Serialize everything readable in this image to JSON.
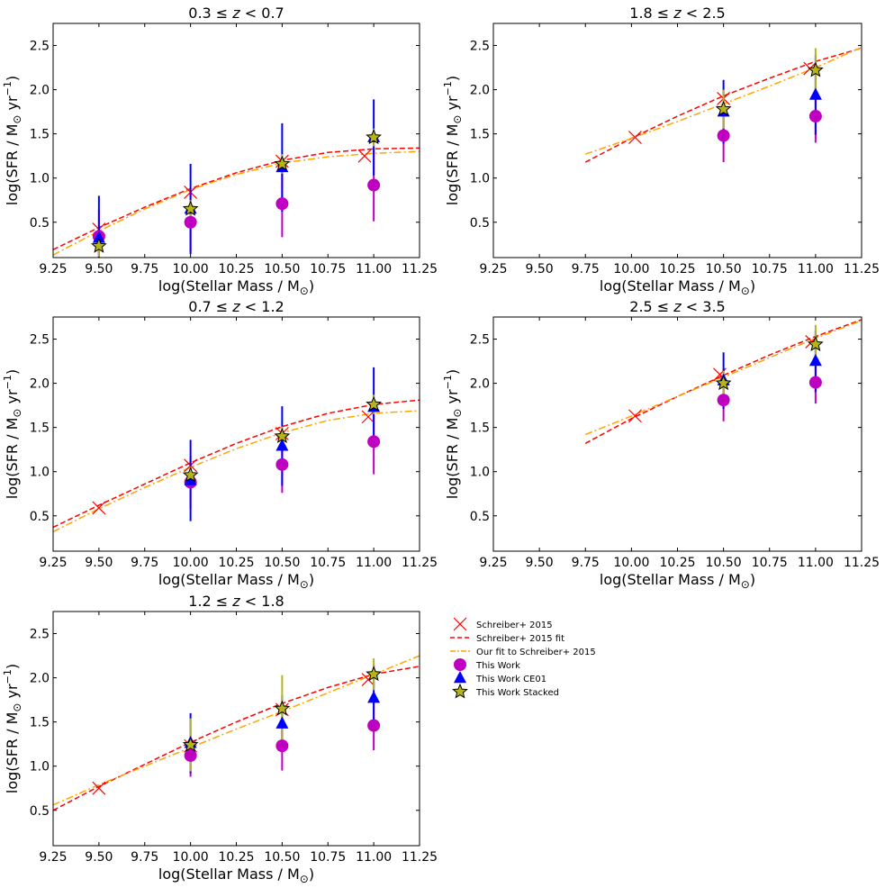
{
  "figure": {
    "legend": {
      "entries": [
        {
          "key": "schreiber_points",
          "label": "Schreiber+ 2015",
          "color": "#ff0000",
          "marker": "x"
        },
        {
          "key": "schreiber_fit",
          "label": "Schreiber+ 2015 fit",
          "color": "#ff0000",
          "linestyle": "dashed"
        },
        {
          "key": "our_fit",
          "label": "Our fit to Schreiber+ 2015",
          "color": "#ffa500",
          "linestyle": "dashdot"
        },
        {
          "key": "this_work",
          "label": "This Work",
          "color": "#c000c0",
          "marker": "circle"
        },
        {
          "key": "this_work_ce01",
          "label": "This Work CE01",
          "color": "#0000ff",
          "marker": "triangle"
        },
        {
          "key": "this_work_stacked",
          "label": "This Work Stacked",
          "color": "#b5b51a",
          "marker": "star"
        }
      ]
    }
  },
  "chart_data": [
    {
      "type": "scatter",
      "title_pre": "0.3 ≤ ",
      "title_var": "z",
      "title_post": " < 0.7",
      "xlabel": "log(Stellar Mass / M",
      "ylabel": "log(SFR / M",
      "ylabel_unit": " yr",
      "ylabel_exp": "−1",
      "xlim": [
        9.25,
        11.25
      ],
      "ylim": [
        0.1,
        2.75
      ],
      "xticks": [
        "9.25",
        "9.50",
        "9.75",
        "10.00",
        "10.25",
        "10.50",
        "10.75",
        "11.00",
        "11.25"
      ],
      "yticks": [
        "0.5",
        "1.0",
        "1.5",
        "2.0",
        "2.5"
      ],
      "schreiber_points": [
        [
          9.5,
          0.42
        ],
        [
          10.0,
          0.84
        ],
        [
          10.5,
          1.19
        ],
        [
          10.95,
          1.25
        ]
      ],
      "schreiber_fit": [
        [
          9.25,
          0.19
        ],
        [
          9.5,
          0.44
        ],
        [
          9.75,
          0.67
        ],
        [
          10.0,
          0.88
        ],
        [
          10.25,
          1.06
        ],
        [
          10.5,
          1.2
        ],
        [
          10.75,
          1.29
        ],
        [
          11.0,
          1.33
        ],
        [
          11.25,
          1.34
        ]
      ],
      "our_fit": [
        [
          9.25,
          0.13
        ],
        [
          9.5,
          0.4
        ],
        [
          9.75,
          0.65
        ],
        [
          10.0,
          0.87
        ],
        [
          10.25,
          1.04
        ],
        [
          10.5,
          1.17
        ],
        [
          10.75,
          1.24
        ],
        [
          11.0,
          1.28
        ],
        [
          11.25,
          1.3
        ]
      ],
      "this_work": [
        {
          "x": 9.5,
          "y": 0.34,
          "err": 0.3
        },
        {
          "x": 10.0,
          "y": 0.5,
          "err": 0.33
        },
        {
          "x": 10.5,
          "y": 0.71,
          "err": 0.38
        },
        {
          "x": 11.0,
          "y": 0.92,
          "err": 0.41
        }
      ],
      "this_work_ce01": [
        {
          "x": 9.5,
          "y": 0.32,
          "err": 0.48
        },
        {
          "x": 10.0,
          "y": 0.65,
          "err": 0.51
        },
        {
          "x": 10.5,
          "y": 1.12,
          "err": 0.5
        },
        {
          "x": 11.0,
          "y": 1.46,
          "err": 0.43
        }
      ],
      "this_work_stacked": [
        {
          "x": 9.5,
          "y": 0.23,
          "err": 0.12
        },
        {
          "x": 10.0,
          "y": 0.65,
          "err": 0.1
        },
        {
          "x": 10.5,
          "y": 1.16,
          "err": 0.11
        },
        {
          "x": 11.0,
          "y": 1.46,
          "err": 0.1
        }
      ]
    },
    {
      "type": "scatter",
      "title_pre": "1.8 ≤ ",
      "title_var": "z",
      "title_post": " < 2.5",
      "xlabel": "log(Stellar Mass / M",
      "ylabel": "log(SFR / M",
      "ylabel_unit": " yr",
      "ylabel_exp": "−1",
      "xlim": [
        9.25,
        11.25
      ],
      "ylim": [
        0.1,
        2.75
      ],
      "xticks": [
        "9.25",
        "9.50",
        "9.75",
        "10.00",
        "10.25",
        "10.50",
        "10.75",
        "11.00",
        "11.25"
      ],
      "yticks": [
        "0.5",
        "1.0",
        "1.5",
        "2.0",
        "2.5"
      ],
      "schreiber_points": [
        [
          10.02,
          1.46
        ],
        [
          10.5,
          1.9
        ],
        [
          10.97,
          2.24
        ]
      ],
      "schreiber_fit": [
        [
          9.75,
          1.18
        ],
        [
          10.0,
          1.45
        ],
        [
          10.25,
          1.7
        ],
        [
          10.5,
          1.93
        ],
        [
          10.75,
          2.13
        ],
        [
          11.0,
          2.32
        ],
        [
          11.25,
          2.47
        ]
      ],
      "our_fit": [
        [
          9.75,
          1.27
        ],
        [
          10.0,
          1.45
        ],
        [
          10.25,
          1.64
        ],
        [
          10.5,
          1.84
        ],
        [
          10.75,
          2.04
        ],
        [
          11.0,
          2.25
        ],
        [
          11.25,
          2.48
        ]
      ],
      "this_work": [
        {
          "x": 10.5,
          "y": 1.48,
          "err": 0.3
        },
        {
          "x": 11.0,
          "y": 1.7,
          "err": 0.3
        }
      ],
      "this_work_ce01": [
        {
          "x": 10.5,
          "y": 1.75,
          "err": 0.36
        },
        {
          "x": 11.0,
          "y": 1.94,
          "err": 0.45
        }
      ],
      "this_work_stacked": [
        {
          "x": 10.5,
          "y": 1.78,
          "err": 0.22
        },
        {
          "x": 11.0,
          "y": 2.22,
          "err": 0.25
        }
      ]
    },
    {
      "type": "scatter",
      "title_pre": "0.7 ≤ ",
      "title_var": "z",
      "title_post": " < 1.2",
      "xlabel": "log(Stellar Mass / M",
      "ylabel": "log(SFR / M",
      "ylabel_unit": " yr",
      "ylabel_exp": "−1",
      "xlim": [
        9.25,
        11.25
      ],
      "ylim": [
        0.1,
        2.75
      ],
      "xticks": [
        "9.25",
        "9.50",
        "9.75",
        "10.00",
        "10.25",
        "10.50",
        "10.75",
        "11.00",
        "11.25"
      ],
      "yticks": [
        "0.5",
        "1.0",
        "1.5",
        "2.0",
        "2.5"
      ],
      "schreiber_points": [
        [
          9.5,
          0.59
        ],
        [
          10.0,
          1.07
        ],
        [
          10.5,
          1.43
        ],
        [
          10.97,
          1.62
        ]
      ],
      "schreiber_fit": [
        [
          9.25,
          0.37
        ],
        [
          9.5,
          0.62
        ],
        [
          9.75,
          0.86
        ],
        [
          10.0,
          1.1
        ],
        [
          10.25,
          1.32
        ],
        [
          10.5,
          1.51
        ],
        [
          10.75,
          1.66
        ],
        [
          11.0,
          1.76
        ],
        [
          11.25,
          1.81
        ]
      ],
      "our_fit": [
        [
          9.25,
          0.32
        ],
        [
          9.5,
          0.58
        ],
        [
          9.75,
          0.82
        ],
        [
          10.0,
          1.05
        ],
        [
          10.25,
          1.26
        ],
        [
          10.5,
          1.44
        ],
        [
          10.75,
          1.58
        ],
        [
          11.0,
          1.66
        ],
        [
          11.25,
          1.69
        ]
      ],
      "this_work": [
        {
          "x": 10.0,
          "y": 0.88,
          "err": 0.3
        },
        {
          "x": 10.5,
          "y": 1.08,
          "err": 0.32
        },
        {
          "x": 11.0,
          "y": 1.34,
          "err": 0.37
        }
      ],
      "this_work_ce01": [
        {
          "x": 10.0,
          "y": 0.9,
          "err": 0.46
        },
        {
          "x": 10.5,
          "y": 1.29,
          "err": 0.45
        },
        {
          "x": 11.0,
          "y": 1.73,
          "err": 0.45
        }
      ],
      "this_work_stacked": [
        {
          "x": 10.0,
          "y": 0.96,
          "err": 0.1
        },
        {
          "x": 10.5,
          "y": 1.4,
          "err": 0.11
        },
        {
          "x": 11.0,
          "y": 1.76,
          "err": 0.11
        }
      ]
    },
    {
      "type": "scatter",
      "title_pre": "2.5 ≤ ",
      "title_var": "z",
      "title_post": " < 3.5",
      "xlabel": "log(Stellar Mass / M",
      "ylabel": "log(SFR / M",
      "ylabel_unit": " yr",
      "ylabel_exp": "−1",
      "xlim": [
        9.25,
        11.25
      ],
      "ylim": [
        0.1,
        2.75
      ],
      "xticks": [
        "9.25",
        "9.50",
        "9.75",
        "10.00",
        "10.25",
        "10.50",
        "10.75",
        "11.00",
        "11.25"
      ],
      "yticks": [
        "0.5",
        "1.0",
        "1.5",
        "2.0",
        "2.5"
      ],
      "schreiber_points": [
        [
          10.02,
          1.63
        ],
        [
          10.48,
          2.1
        ],
        [
          10.98,
          2.47
        ]
      ],
      "schreiber_fit": [
        [
          9.75,
          1.32
        ],
        [
          10.0,
          1.6
        ],
        [
          10.25,
          1.85
        ],
        [
          10.5,
          2.09
        ],
        [
          10.75,
          2.32
        ],
        [
          11.0,
          2.53
        ],
        [
          11.25,
          2.72
        ]
      ],
      "our_fit": [
        [
          9.75,
          1.42
        ],
        [
          10.0,
          1.63
        ],
        [
          10.25,
          1.85
        ],
        [
          10.5,
          2.07
        ],
        [
          10.75,
          2.29
        ],
        [
          11.0,
          2.51
        ],
        [
          11.25,
          2.71
        ]
      ],
      "this_work": [
        {
          "x": 10.5,
          "y": 1.81,
          "err": 0.24
        },
        {
          "x": 11.0,
          "y": 2.01,
          "err": 0.24
        }
      ],
      "this_work_ce01": [
        {
          "x": 10.5,
          "y": 2.03,
          "err": 0.32
        },
        {
          "x": 11.0,
          "y": 2.25,
          "err": 0.35
        }
      ],
      "this_work_stacked": [
        {
          "x": 10.5,
          "y": 2.0,
          "err": 0.14
        },
        {
          "x": 11.0,
          "y": 2.44,
          "err": 0.22
        }
      ]
    },
    {
      "type": "scatter",
      "title_pre": "1.2 ≤ ",
      "title_var": "z",
      "title_post": " < 1.8",
      "xlabel": "log(Stellar Mass / M",
      "ylabel": "log(SFR / M",
      "ylabel_unit": " yr",
      "ylabel_exp": "−1",
      "xlim": [
        9.25,
        11.25
      ],
      "ylim": [
        0.1,
        2.75
      ],
      "xticks": [
        "9.25",
        "9.50",
        "9.75",
        "10.00",
        "10.25",
        "10.50",
        "10.75",
        "11.00",
        "11.25"
      ],
      "yticks": [
        "0.5",
        "1.0",
        "1.5",
        "2.0",
        "2.5"
      ],
      "schreiber_points": [
        [
          9.5,
          0.75
        ],
        [
          10.0,
          1.23
        ],
        [
          10.5,
          1.64
        ],
        [
          10.97,
          1.98
        ]
      ],
      "schreiber_fit": [
        [
          9.25,
          0.5
        ],
        [
          9.5,
          0.77
        ],
        [
          9.75,
          1.02
        ],
        [
          10.0,
          1.27
        ],
        [
          10.25,
          1.5
        ],
        [
          10.5,
          1.71
        ],
        [
          10.75,
          1.89
        ],
        [
          11.0,
          2.04
        ],
        [
          11.25,
          2.13
        ]
      ],
      "our_fit": [
        [
          9.25,
          0.56
        ],
        [
          9.5,
          0.79
        ],
        [
          9.75,
          1.0
        ],
        [
          10.0,
          1.21
        ],
        [
          10.25,
          1.42
        ],
        [
          10.5,
          1.62
        ],
        [
          10.75,
          1.83
        ],
        [
          11.0,
          2.04
        ],
        [
          11.25,
          2.25
        ]
      ],
      "this_work": [
        {
          "x": 10.0,
          "y": 1.12,
          "err": 0.24
        },
        {
          "x": 10.5,
          "y": 1.23,
          "err": 0.28
        },
        {
          "x": 11.0,
          "y": 1.46,
          "err": 0.28
        }
      ],
      "this_work_ce01": [
        {
          "x": 10.0,
          "y": 1.26,
          "err": 0.34
        },
        {
          "x": 10.5,
          "y": 1.48,
          "err": 0.32
        },
        {
          "x": 11.0,
          "y": 1.77,
          "err": 0.38
        }
      ],
      "this_work_stacked": [
        {
          "x": 10.0,
          "y": 1.24,
          "err": 0.3
        },
        {
          "x": 10.5,
          "y": 1.65,
          "err": 0.38
        },
        {
          "x": 11.0,
          "y": 2.04,
          "err": 0.18
        }
      ]
    }
  ]
}
